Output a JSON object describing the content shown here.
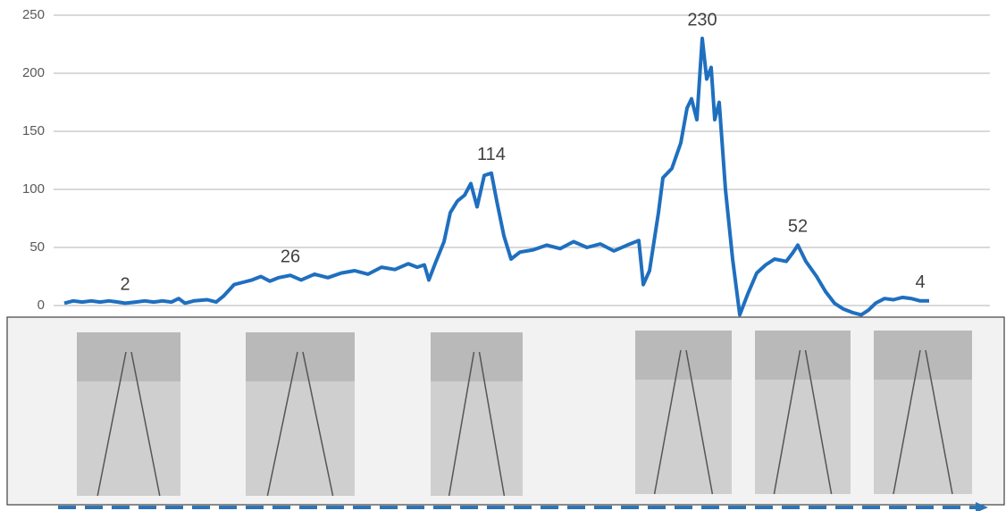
{
  "chart_data": {
    "type": "line",
    "x": [
      0,
      10,
      20,
      30,
      40,
      50,
      60,
      68,
      80,
      90,
      100,
      110,
      120,
      128,
      135,
      145,
      160,
      170,
      178,
      190,
      200,
      210,
      220,
      230,
      240,
      253,
      265,
      280,
      295,
      310,
      325,
      340,
      355,
      370,
      385,
      395,
      403,
      408,
      415,
      425,
      432,
      440,
      448,
      455,
      462,
      470,
      478,
      484,
      492,
      500,
      510,
      525,
      540,
      555,
      570,
      585,
      600,
      615,
      630,
      643,
      648,
      655,
      665,
      670,
      680,
      690,
      697,
      702,
      708,
      714,
      719,
      724,
      728,
      733,
      740,
      748,
      756,
      765,
      775,
      785,
      795,
      808,
      815,
      821,
      830,
      842,
      852,
      862,
      872,
      882,
      892,
      900,
      908,
      918,
      928,
      938,
      948,
      958,
      968
    ],
    "values": [
      2,
      4,
      3,
      4,
      3,
      4,
      3,
      2,
      3,
      4,
      3,
      4,
      3,
      6,
      2,
      4,
      5,
      3,
      8,
      18,
      20,
      22,
      25,
      21,
      24,
      26,
      22,
      27,
      24,
      28,
      30,
      27,
      33,
      31,
      36,
      33,
      35,
      22,
      36,
      55,
      80,
      90,
      95,
      105,
      85,
      112,
      114,
      90,
      60,
      40,
      46,
      48,
      52,
      49,
      55,
      50,
      53,
      47,
      52,
      56,
      18,
      30,
      80,
      110,
      118,
      140,
      170,
      178,
      160,
      230,
      195,
      205,
      160,
      175,
      100,
      40,
      -8,
      10,
      28,
      35,
      40,
      38,
      45,
      52,
      38,
      25,
      12,
      2,
      -3,
      -6,
      -8,
      -4,
      2,
      6,
      5,
      7,
      6,
      4,
      4
    ],
    "color": "#1f6fbf",
    "xlim": [
      0,
      968
    ],
    "ylim": [
      0,
      250
    ],
    "yticks": [
      0,
      50,
      100,
      150,
      200,
      250
    ],
    "grid": true,
    "annotations": [
      {
        "index": 7,
        "label": "2"
      },
      {
        "index": 25,
        "label": "26"
      },
      {
        "index": 46,
        "label": "114"
      },
      {
        "index": 69,
        "label": "230"
      },
      {
        "index": 83,
        "label": "52"
      },
      {
        "index": 97,
        "label": "4"
      }
    ]
  }
}
